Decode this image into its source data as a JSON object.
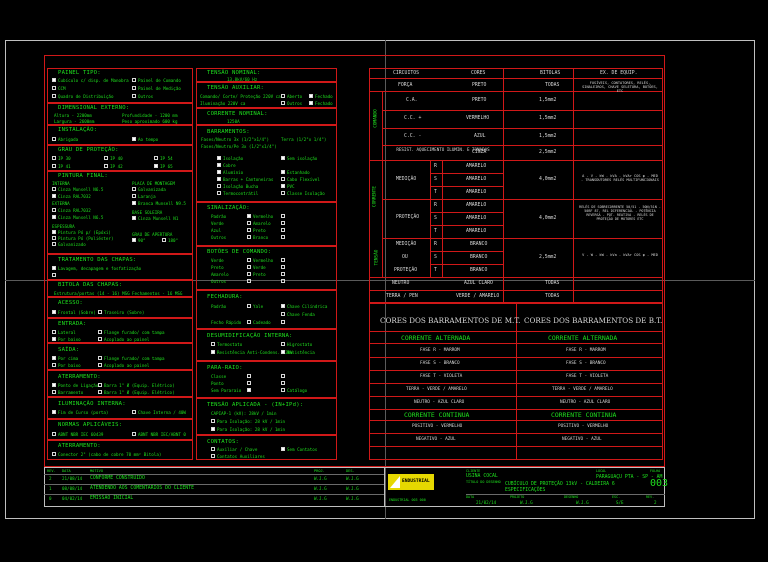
{
  "left_panel": {
    "painel_tipo": {
      "title": "PAINEL TIPO:",
      "opts": [
        "Cubículo c/ disp. de Manobra",
        "Painel de Comando",
        "CCM",
        "Painel de Medição",
        "Quadro de Distribuição",
        "Outros"
      ]
    },
    "dim_externo": {
      "title": "DIMENSIONAL EXTERNO:",
      "l1": "Altura - 2200mm",
      "l2": "Profundidade - 1200 mm",
      "l3": "Largura - 2600mm",
      "l4": "Peso aproximado 600 kg"
    },
    "instalacao": {
      "title": "INSTALAÇÃO:",
      "opts": [
        "Abrigada",
        "Ao tempo"
      ]
    },
    "grau": {
      "title": "GRAU DE PROTEÇÃO:",
      "opts": [
        "IP 30",
        "IP 40",
        "IP 54",
        "IP 41",
        "IP 42",
        "IP 65"
      ]
    },
    "pintura": {
      "title": "PINTURA FINAL:",
      "interna": "INTERNA",
      "opts": [
        "Cinza Munsell N6.5",
        "Cinza RAL7032",
        "Cinza Munsell N6.5"
      ],
      "externa": "EXTERNA",
      "placa": "PLACA DE MONTAGEM",
      "placa_opts": [
        "Galvanizada",
        "Laranja",
        "Branca Munsell N9.5"
      ],
      "espessura": "ESPESSURA",
      "esp_opts": [
        "Pintura Pó p/ (Epóxi)",
        "Pintura Pó (Poliéster)",
        "Galvanizado"
      ],
      "base": "BASE SOLEIRA",
      "base_opts": [
        "Cinza Munsell N1"
      ],
      "grau_ap": "GRAU DE APERTURA",
      "grau_opts": [
        "90°",
        "180°"
      ]
    },
    "tratamento": {
      "title": "TRATAMENTO DAS CHAPAS:",
      "opts": [
        "Lavagem, decapagem e fosfatização"
      ]
    },
    "bitola": {
      "title": "BITOLA DAS CHAPAS:",
      "l1": "Estrutura/portas (14 - 16) MSG",
      "l2": "Fechamentos - 16 MSG"
    },
    "acesso": {
      "title": "ACESSO:",
      "opts": [
        "Frontal (Sobre)",
        "Traseiro (Sobre)"
      ]
    },
    "entrada": {
      "title": "ENTRADA:",
      "opts": [
        "Lateral",
        "Flange furado/ com tampa",
        "Por baixo",
        "Acoplado ao painel"
      ]
    },
    "saida": {
      "title": "SAÍDA:",
      "opts": [
        "Por cima",
        "Flange furado/ com tampa",
        "Por baixo",
        "Acoplado ao painel"
      ]
    },
    "aterramento": {
      "title": "ATERRAMENTO:",
      "opts": [
        "Ponto de Ligação",
        "Barra 1\" Ø (Equip. Elétrico)",
        "Barramento",
        "Barra 1\" Ø (Equip. Elétrico)"
      ]
    },
    "iluminacao": {
      "title": "ILUMINAÇÃO INTERNA:",
      "opts": [
        "Fim de Curso (porta)",
        "Chave Interna / 40W"
      ]
    },
    "normas": {
      "title": "NORMAS APLICÁVEIS:",
      "opts": [
        "ABNT NBR IEC 60439",
        "ABNT NBR IEC/ABNT 0"
      ]
    },
    "aterramento2": {
      "title": "ATERRAMENTO:",
      "l1": "Conector 2\" (cabo de cobre 70 mm² Bitola)"
    }
  },
  "mid_panel": {
    "tensao_nominal": {
      "title": "TENSÃO NOMINAL:",
      "val": "13,8kV/60 Hz"
    },
    "tensao_aux": {
      "title": "TENSÃO AUXILIAR:",
      "l1": "Comando/ Corte/ Proteção 220V ca",
      "l2": "Iluminação 220V ca",
      "opts": [
        "Aberto",
        "Fechado",
        "Outros",
        "Fechado"
      ]
    },
    "corrente_nominal": {
      "title": "CORRENTE NOMINAL:",
      "val": "1250A"
    },
    "barramentos": {
      "title": "BARRAMENTOS:",
      "l1": "Fases/Neutro 3x (1/2\"x1/4\")",
      "l2": "Terra (1/2\"x 1/4\") ",
      "l3": "Fases/Neutro/Pe 3x (1/2\"x1/4\")",
      "opts": [
        "Isolação",
        "Sem isolação",
        "Cobre",
        "Alumínio",
        "Estanhado",
        "Prateado",
        "Barras + Cantoneiras",
        "Cabo Flexível",
        "Sem Isolamento",
        "Isolação Bucha",
        "PVC",
        "Termocontrátil",
        "Classe Isolação"
      ]
    },
    "sinalizacao": {
      "title": "SINALIZAÇÃO:",
      "opts": [
        "Padrão",
        "Vermelho",
        "Verde",
        "Amarelo",
        "Branco",
        "Azul",
        "Preto",
        "Outros"
      ]
    },
    "botoes": {
      "title": "BOTÕES DE COMANDO:",
      "opts": [
        "Verde",
        "Vermelho",
        "Preto",
        "Verde",
        "Amarelo",
        "Preto",
        "Outros"
      ]
    },
    "fechadura": {
      "title": "FECHADURA:",
      "opts": [
        "Padrão",
        "Yale",
        "Chave Cilíndrica",
        "Chave Fenda",
        "Fecho Rápido",
        "Cadeado"
      ]
    },
    "desum": {
      "title": "DESUMIDIFICAÇÃO INTERNA:",
      "opts": [
        "Termostato",
        "Resistência",
        "Resistência Anti-Condens. 220V",
        "Higrostato"
      ]
    },
    "pararaio": {
      "title": "PARA-RAIO:",
      "opts": [
        "Classe",
        "Ponto",
        "Sem Pararaio",
        "Catálogo"
      ]
    },
    "tensao_ap": {
      "title": "TENSÃO APLICADA - (IN+IPd):",
      "l1": "CAPIAP-1 (kV): 28kV / 1min",
      "l2": "Para Isolação: 28 kV / 1min"
    },
    "contatos": {
      "title": "CONTATOS:",
      "opts": [
        "Auxiliar / Chave",
        "Sem Contatos",
        "Contatos Auxiliares"
      ]
    }
  },
  "legend": {
    "headers": [
      "CIRCUITOS",
      "CORES",
      "BITOLAS",
      "EX. DE EQUIP."
    ],
    "forca": {
      "label": "FORÇA",
      "cor": "PRETO",
      "bitola": "TODAS"
    },
    "comando_label": "COMANDO",
    "ca": {
      "label": "C.A.",
      "cor": "PRETO",
      "bitola": "1,5mm2"
    },
    "ccp": {
      "label": "C.C. +",
      "cor": "VERMELHO",
      "bitola": "1,5mm2"
    },
    "ccn": {
      "label": "C.C. -",
      "cor": "AZUL",
      "bitola": "1,5mm2"
    },
    "ilum": {
      "label": "RESIST. AQUECIMENTO ILUMIN. E TOMADAS",
      "cor": "CINZA",
      "bitola": "2,5mm2"
    },
    "eq1": "FUSÍVEIS, CONTATORES, RELÉS, SINALEIROS, CHAVE SELETORA, BOTÕES, ETC",
    "corrente_label": "CORRENTE",
    "medicao": "MEDIÇÃO",
    "protecao": "PROTEÇÃO",
    "tensao_label": "TENSÃO",
    "phases": [
      "R",
      "S",
      "T"
    ],
    "amarelo": "AMARELO",
    "branco": "BRANCO",
    "bitola4": "4,0mm2",
    "bitola25": "2,5mm2",
    "eq_med": "A - V - kW - kVA - kVAr COS φ - MED - TRANSDUTORES RELÉS MULTIFUNCIONAIS",
    "eq_prot": "RELÉS DE SOBRECORRENTE 50/51 - 50N/51N - 50BF 87, REL DIFERENCIAL - POTÊNCIA REVERSA - POT. REATIVA - RELÉS DE PROTEÇÃO DE MOTORES ETC",
    "eq_tens": "V - W - kW - kVa - kVAr COS φ - MED",
    "medicao2": "MEDIÇÃO",
    "ou": "OU",
    "protecao2": "PROTEÇÃO",
    "neutro": {
      "label": "NEUTRO",
      "cor": "AZUL CLARO",
      "bitola": "TODAS"
    },
    "terra": {
      "label": "TERRA / PEN",
      "cor": "VERDE / AMARELO",
      "bitola": "TODAS"
    }
  },
  "barramentos": {
    "mt_title": "CORES DOS BARRAMENTOS DE M.T.",
    "bt_title": "CORES DOS BARRAMENTOS DE B.T.",
    "ca": "CORRENTE ALTERNADA",
    "cc": "CORRENTE CONTINUA",
    "ca_rows": [
      "FASE R  -  MARROM",
      "FASE S  -  BRANCO",
      "FASE T  -  VIOLETA",
      "TERRA  -  VERDE / AMARELO",
      "NEUTRO  -  AZUL CLARO"
    ],
    "cc_rows": [
      "POSITIVO  -  VERMELHO",
      "NEGATIVO  -  AZUL"
    ]
  },
  "title_block": {
    "rev_hdr": [
      "REV.",
      "DATA",
      "MOTIVO",
      "PROJ.",
      "DES."
    ],
    "revs": [
      {
        "rev": "2",
        "data": "21/08/14",
        "motivo": "CONFORME CONSTRUÍDO",
        "proj": "W.J.G",
        "des": "W.J.G"
      },
      {
        "rev": "1",
        "data": "08/08/14",
        "motivo": "ATENDENDO AOS COMENTÁRIOS DO CLIENTE",
        "proj": "W.J.G",
        "des": "W.J.G"
      },
      {
        "rev": "0",
        "data": "04/02/14",
        "motivo": "EMISSÃO INICIAL",
        "proj": "W.J.G",
        "des": "W.J.G"
      }
    ],
    "logo": "ENDUSTRIAL",
    "cliente_lbl": "CLIENTE",
    "cliente": "USINA COCAL",
    "titulo_lbl": "TÍTULO DO DESENHO",
    "titulo1": "CUBÍCULO DE PROTEÇÃO 13kV - CALDEIRA 6",
    "titulo2": "ESPECIFICAÇÕES",
    "local_lbl": "LOCAL",
    "local": "PARAGUAÇU PTA - SP - AM",
    "folha_lbl": "FOLHA",
    "folha": "003",
    "data_lbl": "DATA",
    "data": "21/02/14",
    "proj_lbl": "PROJETO",
    "proj": "W.J.G",
    "des_lbl": "DESENHO",
    "des": "W.J.G",
    "esc_lbl": "ESC.",
    "esc": "S/E",
    "rev_lbl": "REV.",
    "rev": "2",
    "num": "ENDUSTRIAL 003 000"
  }
}
